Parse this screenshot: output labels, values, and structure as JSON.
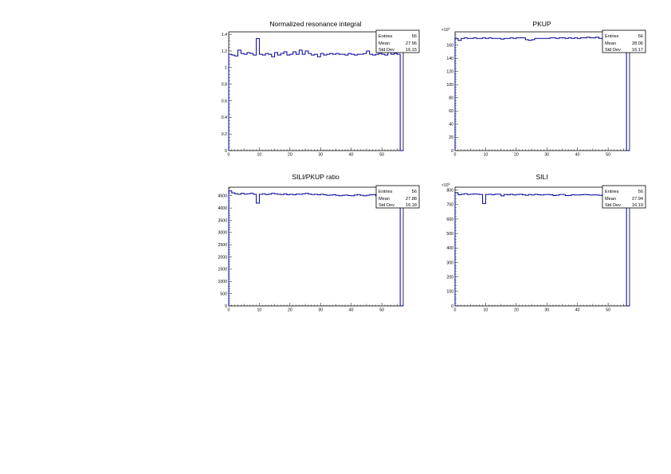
{
  "chart_data": [
    {
      "type": "histogram",
      "title": "Normalized resonance integral",
      "xlim": [
        0,
        57
      ],
      "ylim": [
        0,
        1.43
      ],
      "xticks": [
        0,
        10,
        20,
        30,
        40,
        50
      ],
      "yticks": [
        0,
        0.2,
        0.4,
        0.6,
        0.8,
        1,
        1.2,
        1.4
      ],
      "ytick_labels": [
        "0",
        "0.2",
        "0.4",
        "0.6",
        "0.8",
        "1",
        "1.2",
        "1.4"
      ],
      "y_multiplier": "",
      "bin_width": 1,
      "values": [
        1.16,
        1.15,
        1.14,
        1.21,
        1.17,
        1.16,
        1.18,
        1.17,
        1.15,
        1.35,
        1.16,
        1.15,
        1.17,
        1.16,
        1.13,
        1.18,
        1.15,
        1.17,
        1.19,
        1.15,
        1.16,
        1.19,
        1.16,
        1.21,
        1.16,
        1.2,
        1.17,
        1.15,
        1.16,
        1.13,
        1.17,
        1.15,
        1.16,
        1.17,
        1.16,
        1.17,
        1.16,
        1.16,
        1.15,
        1.17,
        1.16,
        1.15,
        1.16,
        1.16,
        1.17,
        1.2,
        1.16,
        1.15,
        1.16,
        1.17,
        1.16,
        1.15,
        1.18,
        1.16,
        1.17,
        1.16,
        0
      ],
      "stats": {
        "entries_label": "Entries",
        "entries": "56",
        "mean_label": "Mean",
        "mean": "27.96",
        "std_label": "Std Dev",
        "std": "16.15"
      }
    },
    {
      "type": "histogram",
      "title": "PKUP",
      "xlim": [
        0,
        57
      ],
      "ylim": [
        0,
        180
      ],
      "xticks": [
        0,
        10,
        20,
        30,
        40,
        50
      ],
      "yticks": [
        0,
        20,
        40,
        60,
        80,
        100,
        120,
        140,
        160
      ],
      "ytick_labels": [
        "0",
        "20",
        "40",
        "60",
        "80",
        "100",
        "120",
        "140",
        "160"
      ],
      "y_multiplier": "×10",
      "y_exponent": "3",
      "bin_width": 1,
      "values": [
        170,
        167,
        170,
        171,
        170,
        170,
        171,
        170,
        170,
        171,
        170,
        171,
        170,
        170,
        170,
        169,
        170,
        170,
        171,
        170,
        171,
        171,
        171,
        168,
        167,
        168,
        170,
        170,
        170,
        170,
        170,
        171,
        171,
        170,
        171,
        171,
        170,
        171,
        170,
        171,
        170,
        171,
        171,
        172,
        171,
        171,
        172,
        170,
        170,
        171,
        171,
        171,
        170,
        170,
        170,
        171,
        0
      ],
      "stats": {
        "entries_label": "Entries",
        "entries": "56",
        "mean_label": "Mean",
        "mean": "28.06",
        "std_label": "Std Dev",
        "std": "16.17"
      }
    },
    {
      "type": "histogram",
      "title": "SILI/PKUP ratio",
      "xlim": [
        0,
        57
      ],
      "ylim": [
        0,
        4850
      ],
      "xticks": [
        0,
        10,
        20,
        30,
        40,
        50
      ],
      "yticks": [
        0,
        500,
        1000,
        1500,
        2000,
        2500,
        3000,
        3500,
        4000,
        4500
      ],
      "ytick_labels": [
        "0",
        "500",
        "1000",
        "1500",
        "2000",
        "2500",
        "3000",
        "3500",
        "4000",
        "4500"
      ],
      "y_multiplier": "",
      "bin_width": 1,
      "values": [
        4700,
        4620,
        4580,
        4560,
        4600,
        4570,
        4580,
        4600,
        4560,
        4200,
        4560,
        4580,
        4550,
        4570,
        4600,
        4580,
        4560,
        4550,
        4580,
        4540,
        4560,
        4540,
        4570,
        4560,
        4580,
        4600,
        4570,
        4550,
        4560,
        4540,
        4560,
        4540,
        4520,
        4530,
        4540,
        4520,
        4500,
        4520,
        4530,
        4510,
        4500,
        4530,
        4550,
        4520,
        4500,
        4520,
        4540,
        4550,
        4500,
        4520,
        4540,
        4500,
        4520,
        4560,
        4540,
        4520,
        0
      ],
      "stats": {
        "entries_label": "Entries",
        "entries": "56",
        "mean_label": "Mean",
        "mean": "27.88",
        "std_label": "Std Dev",
        "std": "16.18"
      }
    },
    {
      "type": "histogram",
      "title": "SILI",
      "xlim": [
        0,
        57
      ],
      "ylim": [
        0,
        820
      ],
      "xticks": [
        0,
        10,
        20,
        30,
        40,
        50
      ],
      "yticks": [
        0,
        100,
        200,
        300,
        400,
        500,
        600,
        700,
        800
      ],
      "ytick_labels": [
        "0",
        "100",
        "200",
        "300",
        "400",
        "500",
        "600",
        "700",
        "800"
      ],
      "y_multiplier": "×10",
      "y_exponent": "3",
      "bin_width": 1,
      "values": [
        782,
        768,
        772,
        775,
        770,
        771,
        774,
        772,
        770,
        708,
        770,
        771,
        768,
        772,
        772,
        760,
        770,
        768,
        771,
        766,
        770,
        772,
        768,
        764,
        770,
        766,
        771,
        768,
        766,
        769,
        770,
        768,
        762,
        765,
        770,
        770,
        762,
        763,
        768,
        766,
        766,
        768,
        770,
        768,
        766,
        767,
        766,
        764,
        762,
        764,
        768,
        762,
        766,
        764,
        768,
        766,
        0
      ],
      "stats": {
        "entries_label": "Entries",
        "entries": "56",
        "mean_label": "Mean",
        "mean": "27.94",
        "std_label": "Std Dev",
        "std": "16.19"
      }
    }
  ],
  "colors": {
    "line": "#000099",
    "axis": "#000000"
  }
}
